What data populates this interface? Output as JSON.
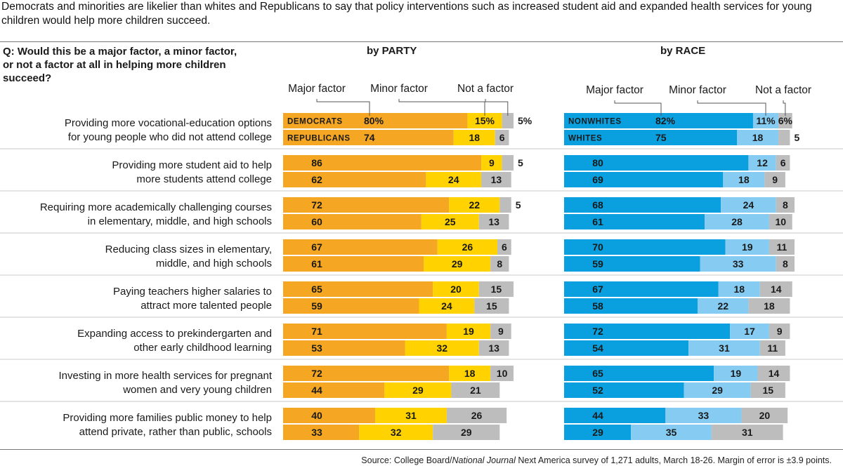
{
  "subtitle": "Democrats and minorities are likelier than whites and Republicans to say that policy interventions such as increased student aid and expanded health services for young children would help more children succeed.",
  "question": "Q: Would this be a major factor, a minor factor, or not a factor at all in helping more children succeed?",
  "source_prefix": "Source: College Board/",
  "source_italic": "National Journal",
  "source_suffix": " Next America survey of 1,271 adults, March 18-26. Margin of error is ±3.9 points.",
  "colors": {
    "party_major": "#f5a623",
    "party_minor": "#ffd200",
    "race_major": "#0aa0e0",
    "race_minor": "#86ccf2",
    "not_factor": "#bdbdbd"
  },
  "chart_data": [
    {
      "type": "bar",
      "stacked": true,
      "orientation": "horizontal",
      "title": "by PARTY",
      "legend": [
        "Major factor",
        "Minor factor",
        "Not a factor"
      ],
      "groups": [
        "Democrats",
        "Republicans"
      ],
      "xlim": [
        0,
        100
      ],
      "categories": [
        "Providing more vocational-education options for young people who did not attend college",
        "Providing more student aid to help more students attend college",
        "Requiring more academically challenging courses in elementary, middle, and high schools",
        "Reducing class sizes in elementary, middle, and high schools",
        "Paying teachers higher salaries to attract more talented people",
        "Expanding access to prekindergarten and other early childhood learning",
        "Investing in more health services for pregnant women and very young children",
        "Providing more families public money to help attend private, rather than public, schools"
      ],
      "category_lines": [
        [
          "Providing more vocational-education options",
          "for young people who did not attend college"
        ],
        [
          "Providing more student aid to help",
          "more students attend college"
        ],
        [
          "Requiring more academically challenging courses",
          "in elementary, middle, and high schools"
        ],
        [
          "Reducing class sizes in elementary,",
          "middle, and high schools"
        ],
        [
          "Paying teachers higher salaries to",
          "attract more talented people"
        ],
        [
          "Expanding access to prekindergarten and",
          "other early childhood learning"
        ],
        [
          "Investing in more health services for pregnant",
          "women and very young children"
        ],
        [
          "Providing more families public money to help",
          "attend private, rather than public, schools"
        ]
      ],
      "series": [
        {
          "name": "Democrats",
          "values": [
            [
              80,
              15,
              5
            ],
            [
              86,
              9,
              5
            ],
            [
              72,
              22,
              5
            ],
            [
              67,
              26,
              6
            ],
            [
              65,
              20,
              15
            ],
            [
              71,
              19,
              9
            ],
            [
              72,
              18,
              10
            ],
            [
              40,
              31,
              26
            ]
          ]
        },
        {
          "name": "Republicans",
          "values": [
            [
              74,
              18,
              6
            ],
            [
              62,
              24,
              13
            ],
            [
              60,
              25,
              13
            ],
            [
              61,
              29,
              8
            ],
            [
              59,
              24,
              15
            ],
            [
              53,
              32,
              13
            ],
            [
              44,
              29,
              21
            ],
            [
              33,
              32,
              29
            ]
          ]
        }
      ]
    },
    {
      "type": "bar",
      "stacked": true,
      "orientation": "horizontal",
      "title": "by RACE",
      "legend": [
        "Major factor",
        "Minor factor",
        "Not a factor"
      ],
      "groups": [
        "Nonwhites",
        "Whites"
      ],
      "xlim": [
        0,
        100
      ],
      "series": [
        {
          "name": "Nonwhites",
          "values": [
            [
              82,
              11,
              6
            ],
            [
              80,
              12,
              6
            ],
            [
              68,
              24,
              8
            ],
            [
              70,
              19,
              11
            ],
            [
              67,
              18,
              14
            ],
            [
              72,
              17,
              9
            ],
            [
              65,
              19,
              14
            ],
            [
              44,
              33,
              20
            ]
          ]
        },
        {
          "name": "Whites",
          "values": [
            [
              75,
              18,
              5
            ],
            [
              69,
              18,
              9
            ],
            [
              61,
              28,
              10
            ],
            [
              59,
              33,
              8
            ],
            [
              58,
              22,
              18
            ],
            [
              54,
              31,
              11
            ],
            [
              52,
              29,
              15
            ],
            [
              29,
              35,
              31
            ]
          ]
        }
      ]
    }
  ]
}
